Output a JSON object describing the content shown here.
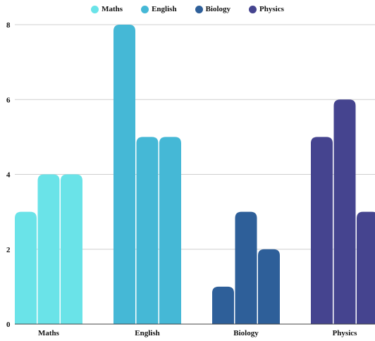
{
  "chart_data": {
    "type": "bar",
    "categories": [
      "Maths",
      "English",
      "Biology",
      "Physics"
    ],
    "legend": [
      {
        "name": "Maths",
        "color": "#6ae3e8"
      },
      {
        "name": "English",
        "color": "#45b8d6"
      },
      {
        "name": "Biology",
        "color": "#2e5f99"
      },
      {
        "name": "Physics",
        "color": "#45448f"
      }
    ],
    "groups": [
      {
        "category": "Maths",
        "color": "#6ae3e8",
        "values": [
          3,
          4,
          4
        ]
      },
      {
        "category": "English",
        "color": "#45b8d6",
        "values": [
          8,
          5,
          5
        ]
      },
      {
        "category": "Biology",
        "color": "#2e5f99",
        "values": [
          1,
          3,
          2
        ]
      },
      {
        "category": "Physics",
        "color": "#45448f",
        "values": [
          5,
          6,
          3
        ]
      }
    ],
    "ylim": [
      0,
      8
    ],
    "yticks": [
      0,
      2,
      4,
      6,
      8
    ],
    "grid": true,
    "legend_position": "top-center",
    "title": "",
    "xlabel": "",
    "ylabel": ""
  }
}
